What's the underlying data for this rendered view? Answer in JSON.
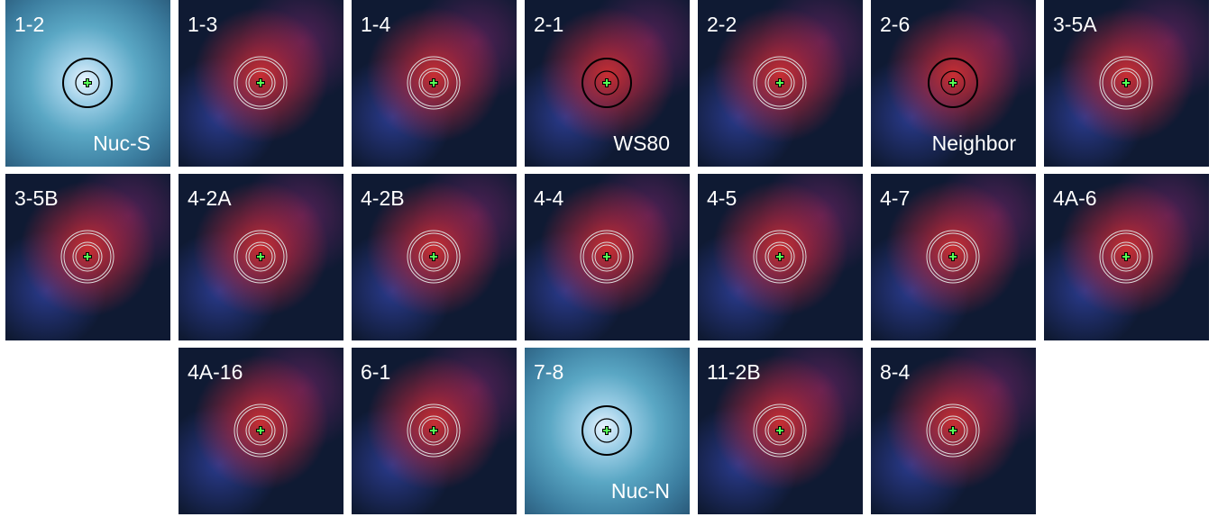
{
  "rows": [
    [
      {
        "label": "1-2",
        "note": "Nuc-S"
      },
      {
        "label": "1-3"
      },
      {
        "label": "1-4"
      },
      {
        "label": "2-1",
        "note": "WS80"
      },
      {
        "label": "2-2"
      },
      {
        "label": "2-6",
        "note": "Neighbor"
      },
      {
        "label": "3-5A"
      }
    ],
    [
      {
        "label": "3-5B"
      },
      {
        "label": "4-2A"
      },
      {
        "label": "4-2B"
      },
      {
        "label": "4-4"
      },
      {
        "label": "4-5"
      },
      {
        "label": "4-7"
      },
      {
        "label": "4A-6"
      }
    ],
    [
      {
        "label": "4A-16"
      },
      {
        "label": "6-1"
      },
      {
        "label": "7-8",
        "note": "Nuc-N"
      },
      {
        "label": "11-2B"
      },
      {
        "label": "8-4"
      }
    ]
  ]
}
